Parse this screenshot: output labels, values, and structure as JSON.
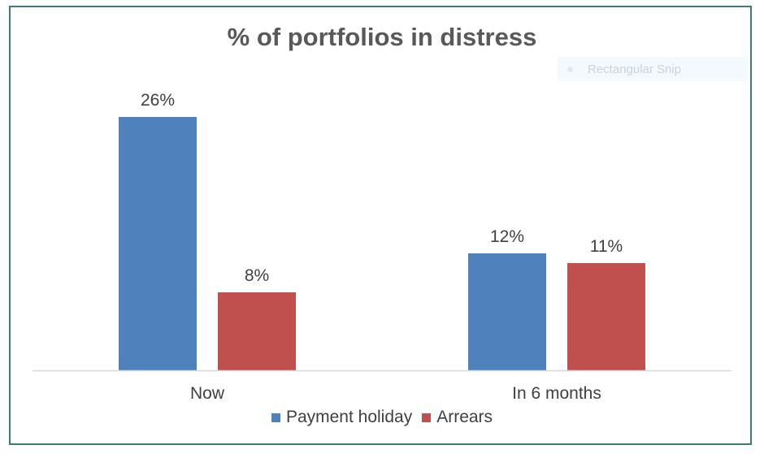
{
  "chart_data": {
    "type": "bar",
    "title": "% of portfolios in distress",
    "categories": [
      "Now",
      "In 6 months"
    ],
    "series": [
      {
        "name": "Payment holiday",
        "values": [
          26,
          12
        ],
        "labels": [
          "26%",
          "12%"
        ],
        "color": "#4f81bd"
      },
      {
        "name": "Arrears",
        "values": [
          8,
          11
        ],
        "labels": [
          "8%",
          "11%"
        ],
        "color": "#c0504d"
      }
    ],
    "xlabel": "",
    "ylabel": "",
    "ylim": [
      0,
      30
    ],
    "grid": false,
    "legend": "bottom",
    "value_axis_visible": false
  },
  "overlay": {
    "label": "Rectangular Snip"
  },
  "colors": {
    "border": "#3f7a73",
    "axis": "#d9d9d9",
    "text": "#404040"
  }
}
